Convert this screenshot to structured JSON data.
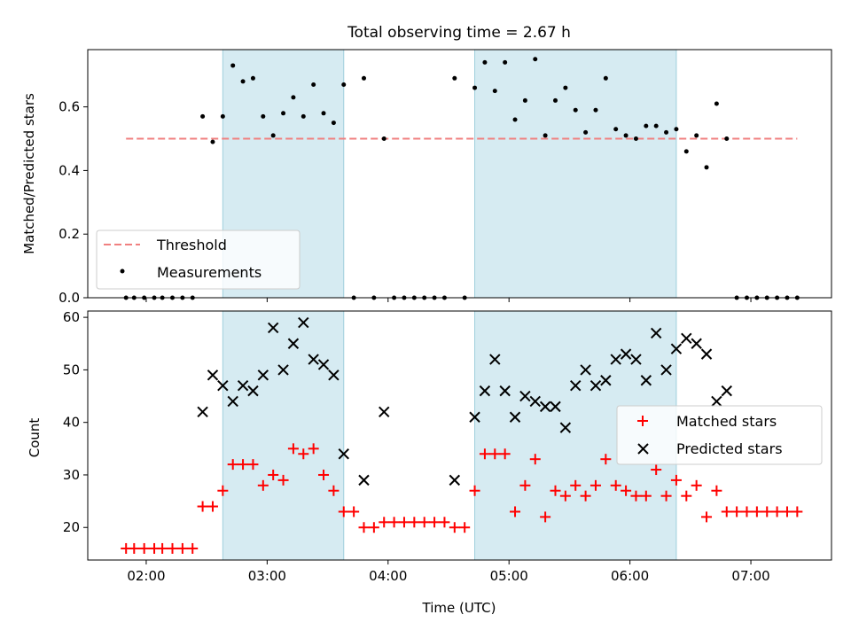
{
  "chart_data": [
    {
      "type": "scatter",
      "title": "Total observing time = 2.67 h",
      "xlabel": "",
      "ylabel": "Matched/Predicted stars",
      "xlim": [
        "01:31",
        "07:40"
      ],
      "ylim": [
        0,
        0.78
      ],
      "yticks": [
        "0.0",
        "0.2",
        "0.4",
        "0.6"
      ],
      "shaded_intervals": [
        [
          "02:38",
          "03:38"
        ],
        [
          "04:43",
          "06:23"
        ]
      ],
      "threshold": {
        "name": "Threshold",
        "value": 0.5,
        "x_range": [
          "01:50",
          "07:23"
        ],
        "color": "#f08080"
      },
      "legend": {
        "placement": "lower-left",
        "entries": [
          "Threshold",
          "Measurements"
        ]
      },
      "series": [
        {
          "name": "Measurements",
          "color": "#000000",
          "x": [
            "01:50",
            "01:54",
            "01:59",
            "02:04",
            "02:08",
            "02:13",
            "02:18",
            "02:23",
            "02:28",
            "02:33",
            "02:38",
            "02:43",
            "02:48",
            "02:53",
            "02:58",
            "03:03",
            "03:08",
            "03:13",
            "03:18",
            "03:23",
            "03:28",
            "03:33",
            "03:38",
            "03:43",
            "03:48",
            "03:53",
            "03:58",
            "04:03",
            "04:08",
            "04:13",
            "04:18",
            "04:23",
            "04:28",
            "04:33",
            "04:38",
            "04:43",
            "04:48",
            "04:53",
            "04:58",
            "05:03",
            "05:08",
            "05:13",
            "05:18",
            "05:23",
            "05:28",
            "05:33",
            "05:38",
            "05:43",
            "05:48",
            "05:53",
            "05:58",
            "06:03",
            "06:08",
            "06:13",
            "06:18",
            "06:23",
            "06:28",
            "06:33",
            "06:38",
            "06:43",
            "06:48",
            "06:53",
            "06:58",
            "07:03",
            "07:08",
            "07:13",
            "07:18",
            "07:23"
          ],
          "y": [
            0,
            0,
            0,
            0,
            0,
            0,
            0,
            0,
            0.57,
            0.49,
            0.57,
            0.73,
            0.68,
            0.69,
            0.57,
            0.51,
            0.58,
            0.63,
            0.57,
            0.67,
            0.58,
            0.55,
            0.67,
            0,
            0.69,
            0,
            0.5,
            0,
            0,
            0,
            0,
            0,
            0,
            0.69,
            0,
            0.66,
            0.74,
            0.65,
            0.74,
            0.56,
            0.62,
            0.75,
            0.51,
            0.62,
            0.66,
            0.59,
            0.52,
            0.59,
            0.69,
            0.53,
            0.51,
            0.5,
            0.54,
            0.54,
            0.52,
            0.53,
            0.46,
            0.51,
            0.41,
            0.61,
            0.5,
            0,
            0,
            0,
            0,
            0,
            0,
            0
          ]
        }
      ]
    },
    {
      "type": "scatter",
      "title": "",
      "xlabel": "Time (UTC)",
      "ylabel": "Count",
      "xlim": [
        "01:31",
        "07:40"
      ],
      "ylim": [
        13.8,
        61.2
      ],
      "yticks": [
        "20",
        "30",
        "40",
        "50",
        "60"
      ],
      "xticks": [
        "02:00",
        "03:00",
        "04:00",
        "05:00",
        "06:00",
        "07:00"
      ],
      "shaded_intervals": [
        [
          "02:38",
          "03:38"
        ],
        [
          "04:43",
          "06:23"
        ]
      ],
      "legend": {
        "placement": "center-right",
        "entries": [
          "Matched stars",
          "Predicted stars"
        ]
      },
      "series": [
        {
          "name": "Matched stars",
          "marker": "plus",
          "color": "#ff0000",
          "x": [
            "01:50",
            "01:54",
            "01:59",
            "02:04",
            "02:08",
            "02:13",
            "02:18",
            "02:23",
            "02:28",
            "02:33",
            "02:38",
            "02:43",
            "02:48",
            "02:53",
            "02:58",
            "03:03",
            "03:08",
            "03:13",
            "03:18",
            "03:23",
            "03:28",
            "03:33",
            "03:38",
            "03:43",
            "03:48",
            "03:53",
            "03:58",
            "04:03",
            "04:08",
            "04:13",
            "04:18",
            "04:23",
            "04:28",
            "04:33",
            "04:38",
            "04:43",
            "04:48",
            "04:53",
            "04:58",
            "05:03",
            "05:08",
            "05:13",
            "05:18",
            "05:23",
            "05:28",
            "05:33",
            "05:38",
            "05:43",
            "05:48",
            "05:53",
            "05:58",
            "06:03",
            "06:08",
            "06:13",
            "06:18",
            "06:23",
            "06:28",
            "06:33",
            "06:38",
            "06:43",
            "06:48",
            "06:53",
            "06:58",
            "07:03",
            "07:08",
            "07:13",
            "07:18",
            "07:23"
          ],
          "y": [
            16,
            16,
            16,
            16,
            16,
            16,
            16,
            16,
            24,
            24,
            27,
            32,
            32,
            32,
            28,
            30,
            29,
            35,
            34,
            35,
            30,
            27,
            23,
            23,
            20,
            20,
            21,
            21,
            21,
            21,
            21,
            21,
            21,
            20,
            20,
            27,
            34,
            34,
            34,
            23,
            28,
            33,
            22,
            27,
            26,
            28,
            26,
            28,
            33,
            28,
            27,
            26,
            26,
            31,
            26,
            29,
            26,
            28,
            22,
            27,
            23,
            23,
            23,
            23,
            23,
            23,
            23,
            23
          ]
        },
        {
          "name": "Predicted stars",
          "marker": "x",
          "color": "#000000",
          "x": [
            "02:28",
            "02:33",
            "02:38",
            "02:43",
            "02:48",
            "02:53",
            "02:58",
            "03:03",
            "03:08",
            "03:13",
            "03:18",
            "03:23",
            "03:28",
            "03:33",
            "03:38",
            "03:48",
            "03:58",
            "04:33",
            "04:43",
            "04:48",
            "04:53",
            "04:58",
            "05:03",
            "05:08",
            "05:13",
            "05:18",
            "05:23",
            "05:28",
            "05:33",
            "05:38",
            "05:43",
            "05:48",
            "05:53",
            "05:58",
            "06:03",
            "06:08",
            "06:13",
            "06:18",
            "06:23",
            "06:28",
            "06:33",
            "06:38",
            "06:43",
            "06:48"
          ],
          "y": [
            42,
            49,
            47,
            44,
            47,
            46,
            49,
            58,
            50,
            55,
            59,
            52,
            51,
            49,
            34,
            29,
            42,
            29,
            41,
            46,
            52,
            46,
            41,
            45,
            44,
            43,
            43,
            39,
            47,
            50,
            47,
            48,
            52,
            53,
            52,
            48,
            57,
            50,
            54,
            56,
            55,
            53,
            44,
            46
          ]
        }
      ]
    }
  ]
}
